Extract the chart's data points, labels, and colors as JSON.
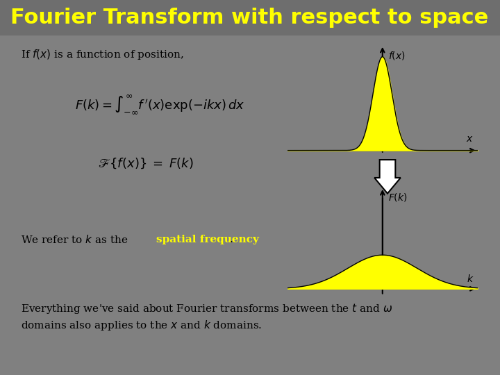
{
  "title": "Fourier Transform with respect to space",
  "title_color": "#FFFF00",
  "title_fontsize": 22,
  "bg_color": "#808080",
  "box_color": "#A0A0A0",
  "text_color": "#000000",
  "white": "#FFFFFF",
  "yellow": "#FFFF00",
  "line1": "If $f(x)$ is a function of position,",
  "formula": "$F(k) = \\int_{-\\infty}^{\\infty} f\\,'(x) \\exp(-ikx)\\, dx$",
  "formula2": "$\\mathscr{F}\\{f(x)\\}\\; = \\;F(k)$",
  "line3_pre": "We refer to $k$ as the ",
  "line3_highlight": "spatial frequency",
  "line3_post": ".",
  "line4": "Everything we've said about Fourier transforms between the $t$ and $\\omega$",
  "line5": "domains also applies to the $x$ and $k$ domains.",
  "fx_label": "$f(x)$",
  "x_label": "$x$",
  "Fk_label": "$F(k)$",
  "k_label": "$k$"
}
